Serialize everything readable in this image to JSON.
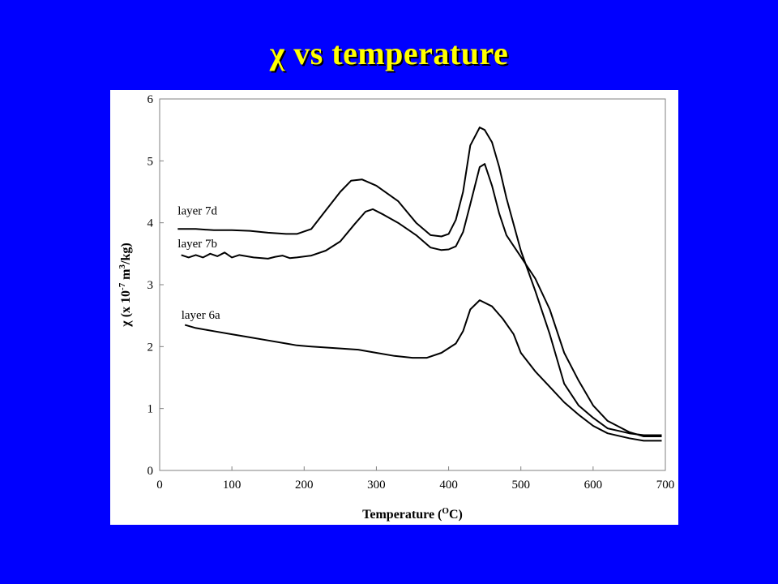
{
  "slide": {
    "title": "χ vs temperature",
    "background_color": "#0000ff",
    "title_color": "#ffff00"
  },
  "chart_data": {
    "type": "line",
    "title": "",
    "xlabel": "Temperature (",
    "xlabel_sup": "O",
    "xlabel_end": "C)",
    "ylabel_parts": [
      "χ (x 10",
      "-7",
      " m",
      "3",
      "/kg)"
    ],
    "xlim": [
      0,
      700
    ],
    "ylim": [
      0,
      6
    ],
    "xticks": [
      0,
      100,
      200,
      300,
      400,
      500,
      600,
      700
    ],
    "yticks": [
      0,
      1,
      2,
      3,
      4,
      5,
      6
    ],
    "grid": false,
    "line_color": "#000000",
    "series": [
      {
        "name": "layer 7d",
        "x": [
          25,
          50,
          75,
          100,
          125,
          150,
          175,
          190,
          210,
          230,
          250,
          265,
          280,
          300,
          330,
          355,
          375,
          390,
          400,
          410,
          420,
          430,
          443,
          450,
          460,
          470,
          480,
          500,
          520,
          540,
          560,
          580,
          600,
          620,
          650,
          670,
          695
        ],
        "y": [
          3.9,
          3.9,
          3.88,
          3.88,
          3.87,
          3.84,
          3.82,
          3.82,
          3.9,
          4.2,
          4.5,
          4.68,
          4.7,
          4.6,
          4.35,
          4.0,
          3.8,
          3.78,
          3.82,
          4.05,
          4.5,
          5.25,
          5.54,
          5.5,
          5.3,
          4.9,
          4.4,
          3.55,
          2.9,
          2.2,
          1.4,
          1.05,
          0.85,
          0.68,
          0.6,
          0.57,
          0.57
        ]
      },
      {
        "name": "layer 7b",
        "x": [
          30,
          40,
          50,
          60,
          70,
          80,
          90,
          100,
          110,
          130,
          150,
          160,
          170,
          180,
          190,
          210,
          230,
          250,
          270,
          285,
          295,
          310,
          330,
          355,
          375,
          390,
          400,
          410,
          420,
          430,
          443,
          450,
          460,
          470,
          480,
          500,
          520,
          540,
          560,
          580,
          600,
          620,
          650,
          670,
          695
        ],
        "y": [
          3.48,
          3.44,
          3.48,
          3.44,
          3.5,
          3.46,
          3.52,
          3.44,
          3.48,
          3.44,
          3.42,
          3.45,
          3.47,
          3.43,
          3.44,
          3.47,
          3.55,
          3.7,
          3.98,
          4.18,
          4.22,
          4.13,
          4.0,
          3.8,
          3.6,
          3.56,
          3.57,
          3.62,
          3.85,
          4.3,
          4.9,
          4.95,
          4.6,
          4.15,
          3.8,
          3.45,
          3.1,
          2.6,
          1.9,
          1.45,
          1.05,
          0.8,
          0.62,
          0.55,
          0.55
        ]
      },
      {
        "name": "layer 6a",
        "x": [
          35,
          50,
          75,
          100,
          125,
          150,
          175,
          190,
          210,
          250,
          275,
          300,
          325,
          350,
          370,
          390,
          410,
          420,
          430,
          443,
          460,
          475,
          490,
          500,
          520,
          540,
          560,
          580,
          600,
          620,
          650,
          670,
          695
        ],
        "y": [
          2.35,
          2.3,
          2.25,
          2.2,
          2.15,
          2.1,
          2.05,
          2.02,
          2.0,
          1.97,
          1.95,
          1.9,
          1.85,
          1.82,
          1.82,
          1.9,
          2.05,
          2.25,
          2.6,
          2.75,
          2.65,
          2.45,
          2.2,
          1.9,
          1.6,
          1.35,
          1.1,
          0.9,
          0.72,
          0.6,
          0.52,
          0.48,
          0.48
        ]
      }
    ],
    "series_labels_anchor_x": [
      25,
      25,
      30
    ],
    "series_labels_anchor_y": [
      4.13,
      3.6,
      2.45
    ]
  }
}
